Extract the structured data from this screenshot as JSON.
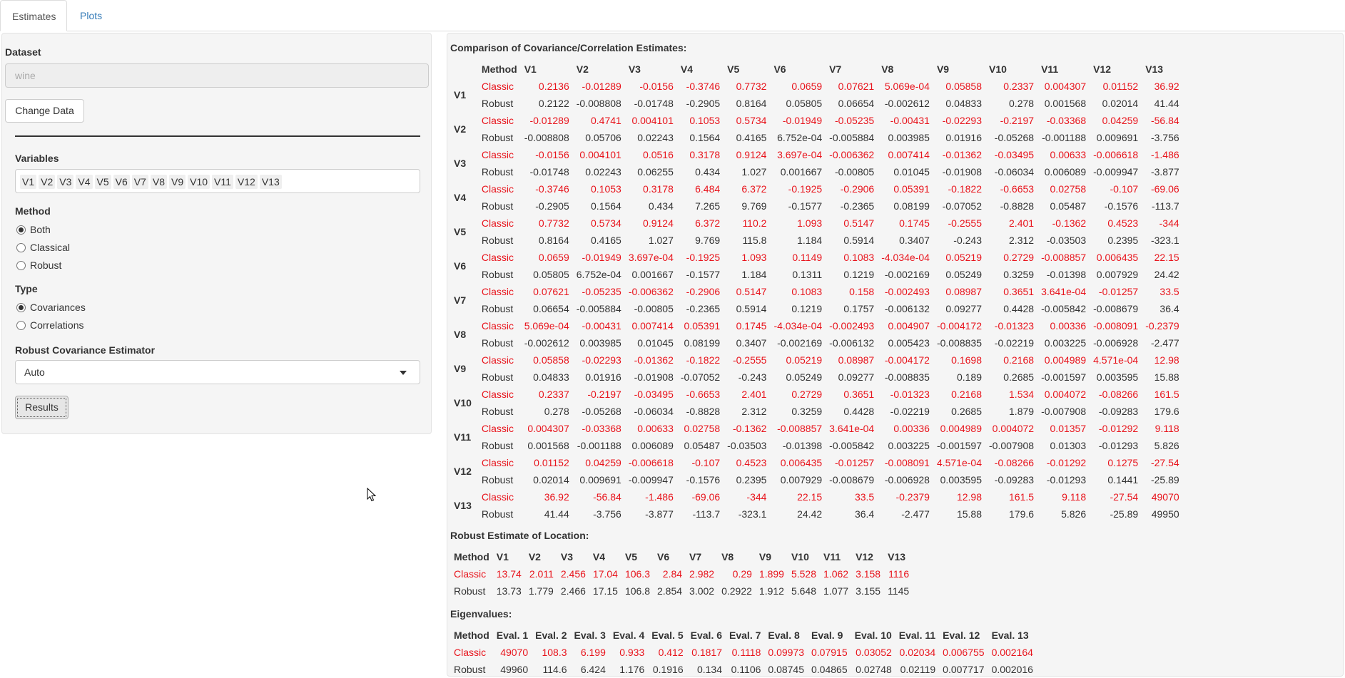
{
  "tabs": [
    {
      "label": "Estimates",
      "active": true
    },
    {
      "label": "Plots",
      "active": false
    }
  ],
  "sidebar": {
    "dataset_label": "Dataset",
    "dataset_value": "wine",
    "change_data_label": "Change Data",
    "variables_label": "Variables",
    "variables": [
      "V1",
      "V2",
      "V3",
      "V4",
      "V5",
      "V6",
      "V7",
      "V8",
      "V9",
      "V10",
      "V11",
      "V12",
      "V13"
    ],
    "method_label": "Method",
    "method_options": [
      {
        "label": "Both",
        "checked": true
      },
      {
        "label": "Classical",
        "checked": false
      },
      {
        "label": "Robust",
        "checked": false
      }
    ],
    "type_label": "Type",
    "type_options": [
      {
        "label": "Covariances",
        "checked": true
      },
      {
        "label": "Correlations",
        "checked": false
      }
    ],
    "estimator_label": "Robust Covariance Estimator",
    "estimator_value": "Auto",
    "results_label": "Results"
  },
  "main": {
    "cov_heading": "Comparison of Covariance/Correlation Estimates:",
    "cov_columns": [
      "Method",
      "V1",
      "V2",
      "V3",
      "V4",
      "V5",
      "V6",
      "V7",
      "V8",
      "V9",
      "V10",
      "V11",
      "V12",
      "V13"
    ],
    "cov_rows": [
      {
        "var": "V1",
        "classic": [
          "Classic",
          "0.2136",
          "-0.01289",
          "-0.0156",
          "-0.3746",
          "0.7732",
          "0.0659",
          "0.07621",
          "5.069e-04",
          "0.05858",
          "0.2337",
          "0.004307",
          "0.01152",
          "36.92"
        ],
        "robust": [
          "Robust",
          "0.2122",
          "-0.008808",
          "-0.01748",
          "-0.2905",
          "0.8164",
          "0.05805",
          "0.06654",
          "-0.002612",
          "0.04833",
          "0.278",
          "0.001568",
          "0.02014",
          "41.44"
        ]
      },
      {
        "var": "V2",
        "classic": [
          "Classic",
          "-0.01289",
          "0.4741",
          "0.004101",
          "0.1053",
          "0.5734",
          "-0.01949",
          "-0.05235",
          "-0.00431",
          "-0.02293",
          "-0.2197",
          "-0.03368",
          "0.04259",
          "-56.84"
        ],
        "robust": [
          "Robust",
          "-0.008808",
          "0.05706",
          "0.02243",
          "0.1564",
          "0.4165",
          "6.752e-04",
          "-0.005884",
          "0.003985",
          "0.01916",
          "-0.05268",
          "-0.001188",
          "0.009691",
          "-3.756"
        ]
      },
      {
        "var": "V3",
        "classic": [
          "Classic",
          "-0.0156",
          "0.004101",
          "0.0516",
          "0.3178",
          "0.9124",
          "3.697e-04",
          "-0.006362",
          "0.007414",
          "-0.01362",
          "-0.03495",
          "0.00633",
          "-0.006618",
          "-1.486"
        ],
        "robust": [
          "Robust",
          "-0.01748",
          "0.02243",
          "0.06255",
          "0.434",
          "1.027",
          "0.001667",
          "-0.00805",
          "0.01045",
          "-0.01908",
          "-0.06034",
          "0.006089",
          "-0.009947",
          "-3.877"
        ]
      },
      {
        "var": "V4",
        "classic": [
          "Classic",
          "-0.3746",
          "0.1053",
          "0.3178",
          "6.484",
          "6.372",
          "-0.1925",
          "-0.2906",
          "0.05391",
          "-0.1822",
          "-0.6653",
          "0.02758",
          "-0.107",
          "-69.06"
        ],
        "robust": [
          "Robust",
          "-0.2905",
          "0.1564",
          "0.434",
          "7.265",
          "9.769",
          "-0.1577",
          "-0.2365",
          "0.08199",
          "-0.07052",
          "-0.8828",
          "0.05487",
          "-0.1576",
          "-113.7"
        ]
      },
      {
        "var": "V5",
        "classic": [
          "Classic",
          "0.7732",
          "0.5734",
          "0.9124",
          "6.372",
          "110.2",
          "1.093",
          "0.5147",
          "0.1745",
          "-0.2555",
          "2.401",
          "-0.1362",
          "0.4523",
          "-344"
        ],
        "robust": [
          "Robust",
          "0.8164",
          "0.4165",
          "1.027",
          "9.769",
          "115.8",
          "1.184",
          "0.5914",
          "0.3407",
          "-0.243",
          "2.312",
          "-0.03503",
          "0.2395",
          "-323.1"
        ]
      },
      {
        "var": "V6",
        "classic": [
          "Classic",
          "0.0659",
          "-0.01949",
          "3.697e-04",
          "-0.1925",
          "1.093",
          "0.1149",
          "0.1083",
          "-4.034e-04",
          "0.05219",
          "0.2729",
          "-0.008857",
          "0.006435",
          "22.15"
        ],
        "robust": [
          "Robust",
          "0.05805",
          "6.752e-04",
          "0.001667",
          "-0.1577",
          "1.184",
          "0.1311",
          "0.1219",
          "-0.002169",
          "0.05249",
          "0.3259",
          "-0.01398",
          "0.007929",
          "24.42"
        ]
      },
      {
        "var": "V7",
        "classic": [
          "Classic",
          "0.07621",
          "-0.05235",
          "-0.006362",
          "-0.2906",
          "0.5147",
          "0.1083",
          "0.158",
          "-0.002493",
          "0.08987",
          "0.3651",
          "3.641e-04",
          "-0.01257",
          "33.5"
        ],
        "robust": [
          "Robust",
          "0.06654",
          "-0.005884",
          "-0.00805",
          "-0.2365",
          "0.5914",
          "0.1219",
          "0.1757",
          "-0.006132",
          "0.09277",
          "0.4428",
          "-0.005842",
          "-0.008679",
          "36.4"
        ]
      },
      {
        "var": "V8",
        "classic": [
          "Classic",
          "5.069e-04",
          "-0.00431",
          "0.007414",
          "0.05391",
          "0.1745",
          "-4.034e-04",
          "-0.002493",
          "0.004907",
          "-0.004172",
          "-0.01323",
          "0.00336",
          "-0.008091",
          "-0.2379"
        ],
        "robust": [
          "Robust",
          "-0.002612",
          "0.003985",
          "0.01045",
          "0.08199",
          "0.3407",
          "-0.002169",
          "-0.006132",
          "0.005423",
          "-0.008835",
          "-0.02219",
          "0.003225",
          "-0.006928",
          "-2.477"
        ]
      },
      {
        "var": "V9",
        "classic": [
          "Classic",
          "0.05858",
          "-0.02293",
          "-0.01362",
          "-0.1822",
          "-0.2555",
          "0.05219",
          "0.08987",
          "-0.004172",
          "0.1698",
          "0.2168",
          "0.004989",
          "4.571e-04",
          "12.98"
        ],
        "robust": [
          "Robust",
          "0.04833",
          "0.01916",
          "-0.01908",
          "-0.07052",
          "-0.243",
          "0.05249",
          "0.09277",
          "-0.008835",
          "0.189",
          "0.2685",
          "-0.001597",
          "0.003595",
          "15.88"
        ]
      },
      {
        "var": "V10",
        "classic": [
          "Classic",
          "0.2337",
          "-0.2197",
          "-0.03495",
          "-0.6653",
          "2.401",
          "0.2729",
          "0.3651",
          "-0.01323",
          "0.2168",
          "1.534",
          "0.004072",
          "-0.08266",
          "161.5"
        ],
        "robust": [
          "Robust",
          "0.278",
          "-0.05268",
          "-0.06034",
          "-0.8828",
          "2.312",
          "0.3259",
          "0.4428",
          "-0.02219",
          "0.2685",
          "1.879",
          "-0.007908",
          "-0.09283",
          "179.6"
        ]
      },
      {
        "var": "V11",
        "classic": [
          "Classic",
          "0.004307",
          "-0.03368",
          "0.00633",
          "0.02758",
          "-0.1362",
          "-0.008857",
          "3.641e-04",
          "0.00336",
          "0.004989",
          "0.004072",
          "0.01357",
          "-0.01292",
          "9.118"
        ],
        "robust": [
          "Robust",
          "0.001568",
          "-0.001188",
          "0.006089",
          "0.05487",
          "-0.03503",
          "-0.01398",
          "-0.005842",
          "0.003225",
          "-0.001597",
          "-0.007908",
          "0.01303",
          "-0.01293",
          "5.826"
        ]
      },
      {
        "var": "V12",
        "classic": [
          "Classic",
          "0.01152",
          "0.04259",
          "-0.006618",
          "-0.107",
          "0.4523",
          "0.006435",
          "-0.01257",
          "-0.008091",
          "4.571e-04",
          "-0.08266",
          "-0.01292",
          "0.1275",
          "-27.54"
        ],
        "robust": [
          "Robust",
          "0.02014",
          "0.009691",
          "-0.009947",
          "-0.1576",
          "0.2395",
          "0.007929",
          "-0.008679",
          "-0.006928",
          "0.003595",
          "-0.09283",
          "-0.01293",
          "0.1441",
          "-25.89"
        ]
      },
      {
        "var": "V13",
        "classic": [
          "Classic",
          "36.92",
          "-56.84",
          "-1.486",
          "-69.06",
          "-344",
          "22.15",
          "33.5",
          "-0.2379",
          "12.98",
          "161.5",
          "9.118",
          "-27.54",
          "49070"
        ],
        "robust": [
          "Robust",
          "41.44",
          "-3.756",
          "-3.877",
          "-113.7",
          "-323.1",
          "24.42",
          "36.4",
          "-2.477",
          "15.88",
          "179.6",
          "5.826",
          "-25.89",
          "49950"
        ]
      }
    ],
    "loc_heading": "Robust Estimate of Location:",
    "loc_columns": [
      "Method",
      "V1",
      "V2",
      "V3",
      "V4",
      "V5",
      "V6",
      "V7",
      "V8",
      "V9",
      "V10",
      "V11",
      "V12",
      "V13"
    ],
    "loc_rows": [
      [
        "Classic",
        "13.74",
        "2.011",
        "2.456",
        "17.04",
        "106.3",
        "2.84",
        "2.982",
        "0.29",
        "1.899",
        "5.528",
        "1.062",
        "3.158",
        "1116"
      ],
      [
        "Robust",
        "13.73",
        "1.779",
        "2.466",
        "17.15",
        "106.8",
        "2.854",
        "3.002",
        "0.2922",
        "1.912",
        "5.648",
        "1.077",
        "3.155",
        "1145"
      ]
    ],
    "eig_heading": "Eigenvalues:",
    "eig_columns": [
      "Method",
      "Eval. 1",
      "Eval. 2",
      "Eval. 3",
      "Eval. 4",
      "Eval. 5",
      "Eval. 6",
      "Eval. 7",
      "Eval. 8",
      "Eval. 9",
      "Eval. 10",
      "Eval. 11",
      "Eval. 12",
      "Eval. 13"
    ],
    "eig_rows": [
      [
        "Classic",
        "49070",
        "108.3",
        "6.199",
        "0.933",
        "0.412",
        "0.1817",
        "0.1118",
        "0.09973",
        "0.07915",
        "0.03052",
        "0.02034",
        "0.006755",
        "0.002164"
      ],
      [
        "Robust",
        "49960",
        "114.6",
        "6.424",
        "1.176",
        "0.1916",
        "0.134",
        "0.1106",
        "0.08745",
        "0.04865",
        "0.02748",
        "0.02119",
        "0.007717",
        "0.002016"
      ]
    ]
  },
  "colors": {
    "classic": "#e8141c",
    "link": "#337ab7"
  }
}
